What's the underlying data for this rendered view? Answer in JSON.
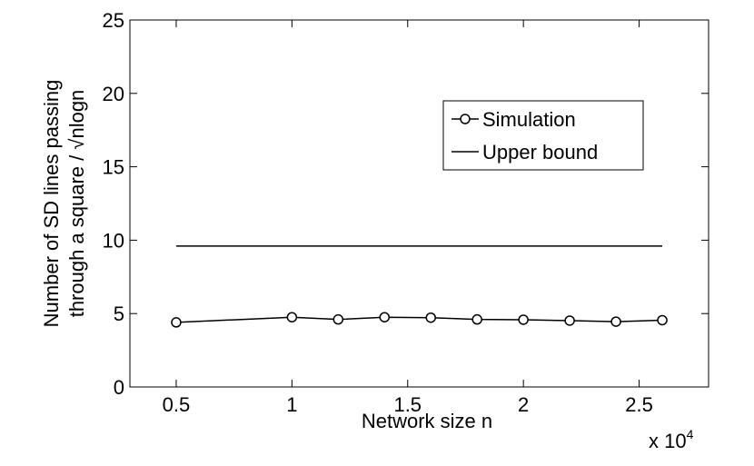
{
  "chart_data": {
    "type": "line",
    "xlabel": "Network size n",
    "ylabel_line1": "Number of SD lines passing",
    "ylabel_line2": "through a square / √nlogn",
    "x_multiplier": "x 10",
    "x_multiplier_exp": "4",
    "xlim": [
      0.3,
      2.8
    ],
    "ylim": [
      0,
      25
    ],
    "xticks": [
      "0.5",
      "1",
      "1.5",
      "2",
      "2.5"
    ],
    "yticks": [
      "0",
      "5",
      "10",
      "15",
      "20",
      "25"
    ],
    "grid": false,
    "legend_position": "upper-right-inside",
    "series": [
      {
        "name": "Simulation",
        "marker": "circle",
        "color": "#000000",
        "x": [
          0.5,
          1.0,
          1.2,
          1.4,
          1.6,
          1.8,
          2.0,
          2.2,
          2.4,
          2.6
        ],
        "y": [
          4.4,
          4.75,
          4.6,
          4.75,
          4.72,
          4.6,
          4.58,
          4.52,
          4.45,
          4.55
        ]
      },
      {
        "name": "Upper bound",
        "marker": "none",
        "color": "#000000",
        "x": [
          0.5,
          2.6
        ],
        "y": [
          9.6,
          9.6
        ]
      }
    ]
  }
}
